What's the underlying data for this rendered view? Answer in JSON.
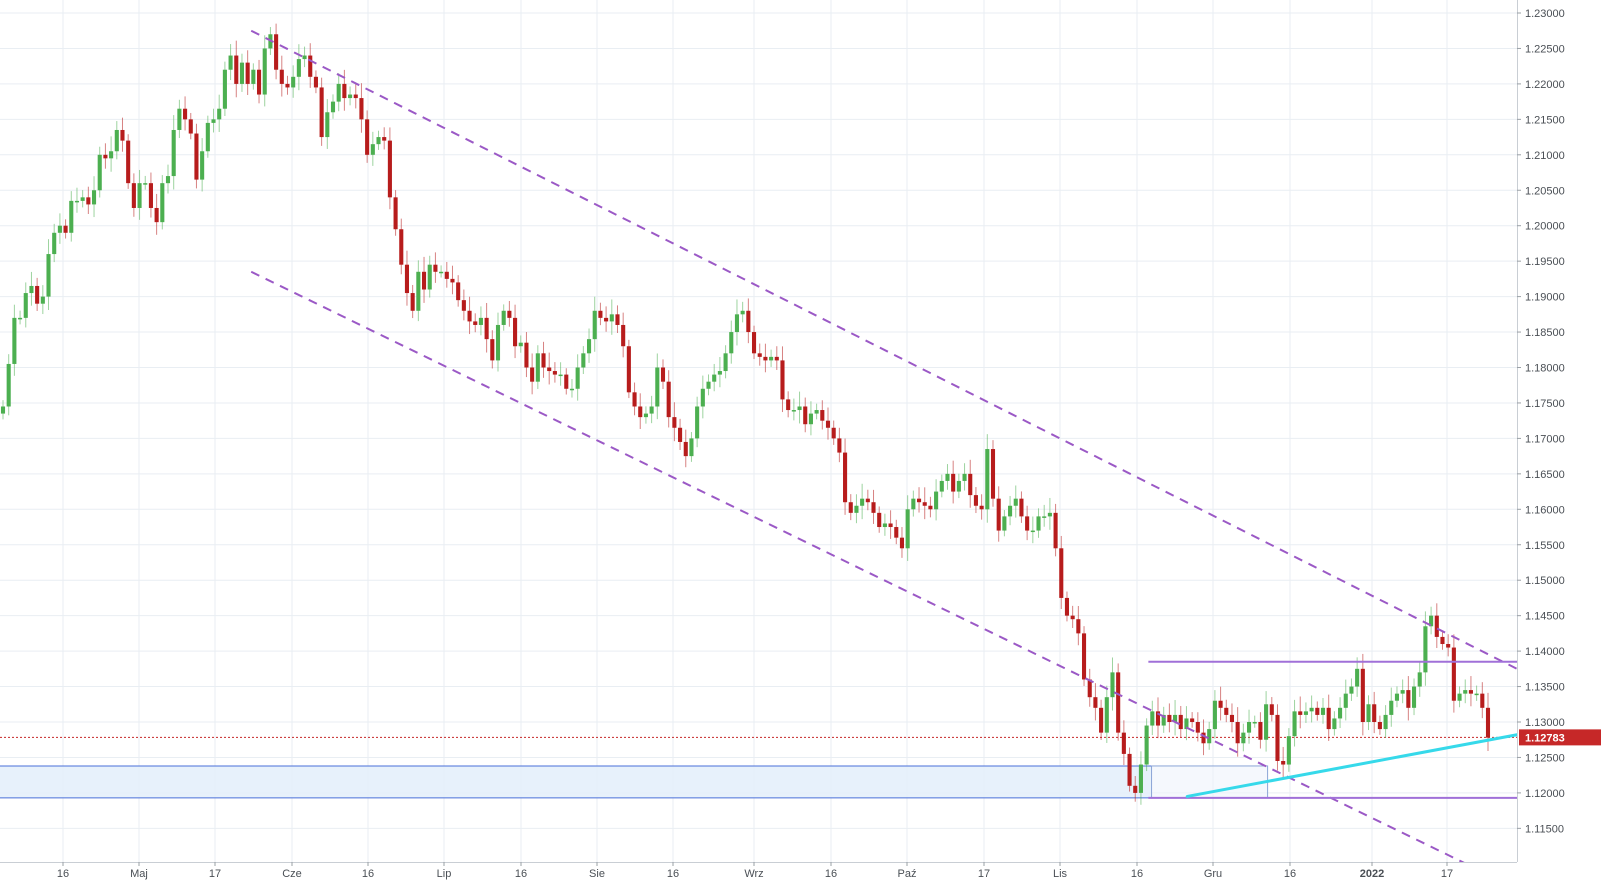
{
  "chart_data": {
    "type": "candlestick",
    "title": "",
    "xlabel": "",
    "ylabel": "",
    "ylim": [
      1.1125,
      1.231
    ],
    "grid": true,
    "colors": {
      "up": "#4caf50",
      "down": "#b71c1c",
      "channel": "#9b59c6",
      "range": "#a070d8",
      "support": "#36d9ea",
      "zone_fill": "#e3eefa",
      "zone_border": "#4a6fd8",
      "price_line": "#c62828",
      "price_label_bg": "#c62828",
      "grid": "#e9eef3",
      "axis_text": "#4a4f55"
    },
    "y_ticks": [
      "1.11500",
      "1.12000",
      "1.12500",
      "1.13000",
      "1.13500",
      "1.14000",
      "1.14500",
      "1.15000",
      "1.15500",
      "1.16000",
      "1.16500",
      "1.17000",
      "1.17500",
      "1.18000",
      "1.18500",
      "1.19000",
      "1.19500",
      "1.20000",
      "1.20500",
      "1.21000",
      "1.21500",
      "1.22000",
      "1.22500",
      "1.23000"
    ],
    "x_ticks": [
      {
        "label": "16",
        "bold": false
      },
      {
        "label": "Maj",
        "bold": false
      },
      {
        "label": "17",
        "bold": false
      },
      {
        "label": "Cze",
        "bold": false
      },
      {
        "label": "16",
        "bold": false
      },
      {
        "label": "Lip",
        "bold": false
      },
      {
        "label": "16",
        "bold": false
      },
      {
        "label": "Sie",
        "bold": false
      },
      {
        "label": "16",
        "bold": false
      },
      {
        "label": "Wrz",
        "bold": false
      },
      {
        "label": "16",
        "bold": false
      },
      {
        "label": "Paź",
        "bold": false
      },
      {
        "label": "17",
        "bold": false
      },
      {
        "label": "Lis",
        "bold": false
      },
      {
        "label": "16",
        "bold": false
      },
      {
        "label": "Gru",
        "bold": false
      },
      {
        "label": "16",
        "bold": false
      },
      {
        "label": "2022",
        "bold": true
      },
      {
        "label": "17",
        "bold": false
      }
    ],
    "last_price": "1.12783",
    "last_price_value": 1.12783,
    "candles_close": [
      1.1745,
      1.1805,
      1.187,
      1.187,
      1.1905,
      1.1915,
      1.189,
      1.19,
      1.196,
      1.199,
      1.2,
      1.199,
      1.2035,
      1.2035,
      1.204,
      1.203,
      1.205,
      1.21,
      1.2095,
      1.2105,
      1.2135,
      1.212,
      1.206,
      1.2025,
      1.206,
      1.206,
      1.2025,
      1.2005,
      1.206,
      1.207,
      1.2135,
      1.2165,
      1.215,
      1.213,
      1.2065,
      1.2105,
      1.2145,
      1.215,
      1.2165,
      1.222,
      1.224,
      1.22,
      1.223,
      1.22,
      1.222,
      1.2185,
      1.225,
      1.227,
      1.222,
      1.22,
      1.2195,
      1.221,
      1.2235,
      1.224,
      1.221,
      1.2195,
      1.2125,
      1.216,
      1.2175,
      1.22,
      1.218,
      1.2185,
      1.218,
      1.215,
      1.21,
      1.2115,
      1.2125,
      1.212,
      1.204,
      1.1995,
      1.1945,
      1.1905,
      1.188,
      1.1935,
      1.191,
      1.1945,
      1.1935,
      1.1935,
      1.1925,
      1.192,
      1.1895,
      1.188,
      1.1865,
      1.186,
      1.187,
      1.184,
      1.181,
      1.186,
      1.188,
      1.187,
      1.183,
      1.1835,
      1.18,
      1.178,
      1.182,
      1.18,
      1.1795,
      1.179,
      1.179,
      1.177,
      1.177,
      1.18,
      1.182,
      1.184,
      1.188,
      1.187,
      1.1865,
      1.1875,
      1.186,
      1.183,
      1.1765,
      1.1745,
      1.173,
      1.1735,
      1.1745,
      1.18,
      1.178,
      1.173,
      1.1715,
      1.1695,
      1.1675,
      1.17,
      1.1745,
      1.177,
      1.178,
      1.179,
      1.1795,
      1.182,
      1.185,
      1.1875,
      1.188,
      1.185,
      1.182,
      1.1815,
      1.181,
      1.1815,
      1.181,
      1.1755,
      1.174,
      1.174,
      1.1745,
      1.172,
      1.1735,
      1.174,
      1.1725,
      1.1715,
      1.17,
      1.168,
      1.161,
      1.1595,
      1.1605,
      1.1615,
      1.161,
      1.1595,
      1.1575,
      1.158,
      1.1575,
      1.156,
      1.1545,
      1.16,
      1.1615,
      1.161,
      1.1605,
      1.16,
      1.1625,
      1.164,
      1.165,
      1.1625,
      1.164,
      1.165,
      1.162,
      1.1605,
      1.16,
      1.1685,
      1.1615,
      1.157,
      1.159,
      1.1605,
      1.1615,
      1.159,
      1.157,
      1.157,
      1.159,
      1.159,
      1.1595,
      1.1545,
      1.1475,
      1.145,
      1.1445,
      1.1425,
      1.136,
      1.1335,
      1.132,
      1.1285,
      1.1335,
      1.137,
      1.1285,
      1.1255,
      1.121,
      1.12,
      1.124,
      1.1295,
      1.1315,
      1.1295,
      1.131,
      1.13,
      1.131,
      1.129,
      1.1305,
      1.13,
      1.1285,
      1.127,
      1.129,
      1.133,
      1.132,
      1.131,
      1.13,
      1.127,
      1.1285,
      1.13,
      1.13,
      1.1275,
      1.1325,
      1.131,
      1.1245,
      1.124,
      1.128,
      1.1315,
      1.131,
      1.1315,
      1.132,
      1.131,
      1.132,
      1.129,
      1.1305,
      1.132,
      1.134,
      1.135,
      1.1375,
      1.13,
      1.1325,
      1.13,
      1.129,
      1.131,
      1.133,
      1.134,
      1.1345,
      1.132,
      1.135,
      1.137,
      1.1435,
      1.145,
      1.142,
      1.141,
      1.1405,
      1.133,
      1.134,
      1.1345,
      1.134,
      1.134,
      1.132,
      1.1278
    ],
    "annotations": {
      "channel_upper": [
        [
          0.1656,
          1.2275
        ],
        [
          1.0,
          1.1375
        ]
      ],
      "channel_lower": [
        [
          0.1656,
          1.1935
        ],
        [
          1.0,
          1.1065
        ]
      ],
      "range_top": {
        "y": 1.1385,
        "x_from": 0.757
      },
      "range_bottom": {
        "y": 1.1193,
        "x_from": 0.757
      },
      "support_line": [
        [
          0.7826,
          1.1195
        ],
        [
          1.0,
          1.1282
        ]
      ],
      "zone": {
        "y_top": 1.1238,
        "y_bottom": 1.1193,
        "x_to": 0.7591
      },
      "zone_box": {
        "y_top": 1.1238,
        "y_bottom": 1.1193,
        "x_from": 0.7591,
        "x_to": 0.8356
      }
    }
  }
}
